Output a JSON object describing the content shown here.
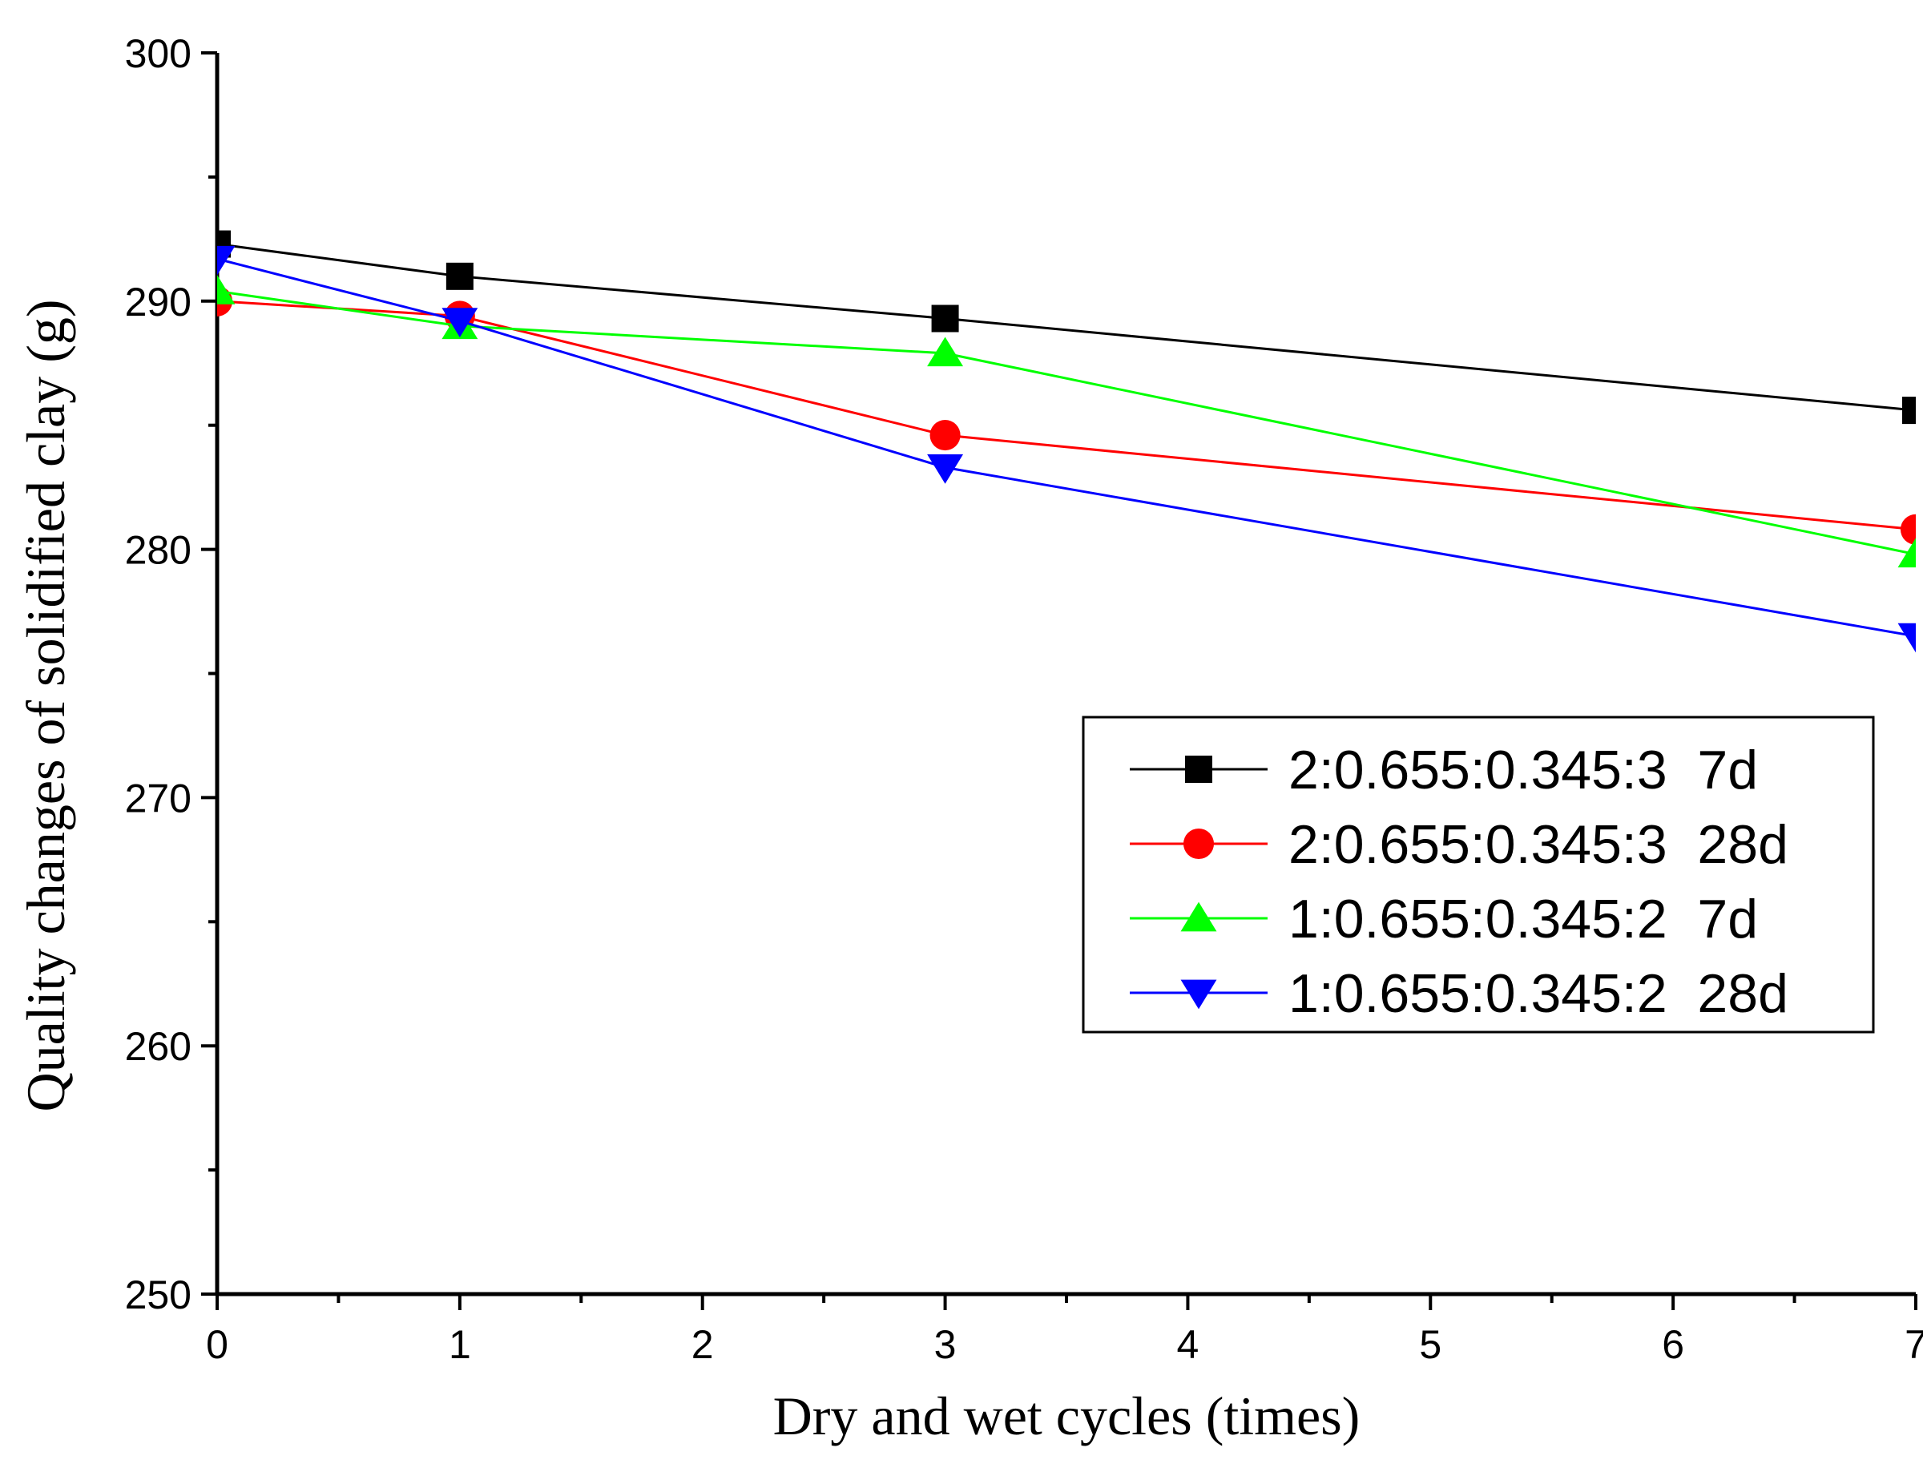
{
  "chart_data": {
    "type": "line",
    "title": "",
    "xlabel": "Dry and wet cycles (times)",
    "ylabel": "Quality changes of solidified clay (g)",
    "xlim": [
      0,
      7
    ],
    "ylim": [
      250,
      300
    ],
    "x_ticks": [
      0,
      1,
      2,
      3,
      4,
      5,
      6,
      7
    ],
    "y_ticks": [
      250,
      260,
      270,
      280,
      290,
      300
    ],
    "x_minor_step": 0.5,
    "y_minor_step": 5,
    "grid": false,
    "legend_position": "center-right",
    "series": [
      {
        "name": "2:0.655:0.345:3  7d",
        "color": "#000000",
        "marker": "square",
        "x": [
          0,
          1,
          3,
          7
        ],
        "y": [
          292.3,
          291.0,
          289.3,
          285.6
        ]
      },
      {
        "name": "2:0.655:0.345:3  28d",
        "color": "#ff0000",
        "marker": "circle",
        "x": [
          0,
          1,
          3,
          7
        ],
        "y": [
          290.0,
          289.4,
          284.6,
          280.8
        ]
      },
      {
        "name": "1:0.655:0.345:2  7d",
        "color": "#00ff00",
        "marker": "triangle-up",
        "x": [
          0,
          1,
          3,
          7
        ],
        "y": [
          290.4,
          289.0,
          287.9,
          279.8
        ]
      },
      {
        "name": "1:0.655:0.345:2  28d",
        "color": "#0000ff",
        "marker": "triangle-down",
        "x": [
          0,
          1,
          3,
          7
        ],
        "y": [
          291.7,
          289.2,
          283.3,
          276.5
        ]
      }
    ]
  }
}
